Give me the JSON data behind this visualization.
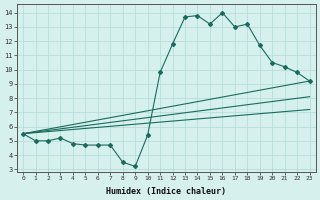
{
  "xlabel": "Humidex (Indice chaleur)",
  "bg_color": "#d6f0ee",
  "grid_color": "#b8ddd9",
  "line_color": "#1a6b5e",
  "xlim": [
    -0.5,
    23.5
  ],
  "ylim": [
    2.8,
    14.6
  ],
  "yticks": [
    3,
    4,
    5,
    6,
    7,
    8,
    9,
    10,
    11,
    12,
    13,
    14
  ],
  "xticks": [
    0,
    1,
    2,
    3,
    4,
    5,
    6,
    7,
    8,
    9,
    10,
    11,
    12,
    13,
    14,
    15,
    16,
    17,
    18,
    19,
    20,
    21,
    22,
    23
  ],
  "main_x": [
    0,
    1,
    2,
    3,
    4,
    5,
    6,
    7,
    8,
    9,
    10,
    11,
    12,
    13,
    14,
    15,
    16,
    17,
    18,
    19,
    20,
    21,
    22,
    23
  ],
  "main_y": [
    5.5,
    5.0,
    5.0,
    5.2,
    4.8,
    4.7,
    4.7,
    4.7,
    3.5,
    3.2,
    5.4,
    9.8,
    11.8,
    13.7,
    13.8,
    13.2,
    14.0,
    13.0,
    13.2,
    11.7,
    10.5,
    10.2,
    9.8,
    9.2
  ],
  "line1_x": [
    0,
    23
  ],
  "line1_y": [
    5.5,
    9.2
  ],
  "line2_x": [
    0,
    23
  ],
  "line2_y": [
    5.5,
    8.1
  ],
  "line3_x": [
    0,
    23
  ],
  "line3_y": [
    5.5,
    7.2
  ]
}
